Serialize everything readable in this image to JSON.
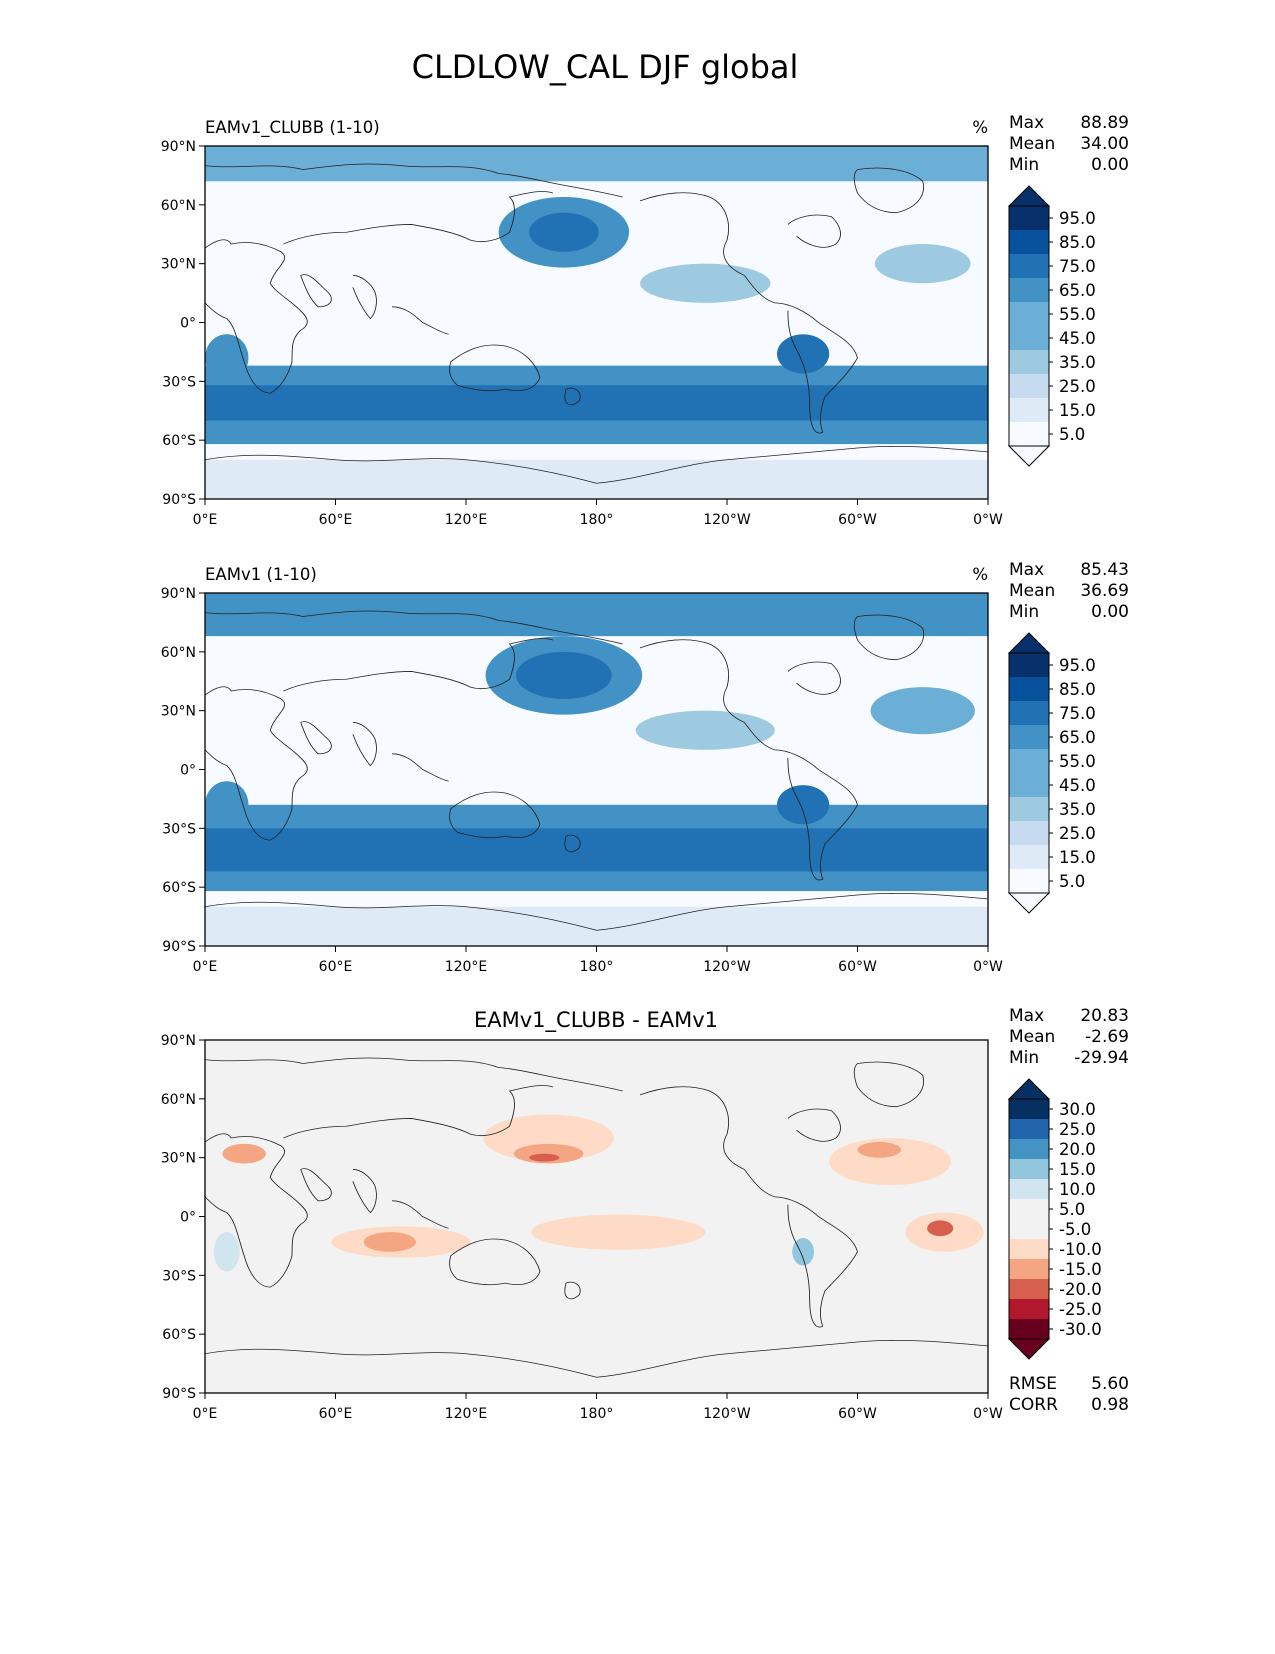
{
  "figure": {
    "title": "CLDLOW_CAL DJF global"
  },
  "colors": {
    "seq": [
      "#f7fbff",
      "#deebf7",
      "#c6dbef",
      "#9ecae1",
      "#6baed6",
      "#4292c6",
      "#2171b5",
      "#08519c",
      "#08306b"
    ],
    "div_pos": [
      "#d1e5f0",
      "#92c5de",
      "#4393c3",
      "#2166ac",
      "#053061"
    ],
    "div_neg": [
      "#fddbc7",
      "#f4a582",
      "#d6604d",
      "#b2182b",
      "#67001f"
    ],
    "div_zero": "#f2f2f2",
    "coast": "#222222"
  },
  "axes": {
    "lon_ticks": [
      "0°E",
      "60°E",
      "120°E",
      "180°",
      "120°W",
      "60°W",
      "0°W"
    ],
    "lat_ticks": [
      "90°N",
      "60°N",
      "30°N",
      "0°",
      "30°S",
      "60°S",
      "90°S"
    ]
  },
  "panels": [
    {
      "title": "EAMv1_CLUBB (1-10)",
      "units": "%",
      "stats": {
        "max_label": "Max",
        "max": "88.89",
        "mean_label": "Mean",
        "mean": "34.00",
        "min_label": "Min",
        "min": "0.00"
      },
      "colorbar_ticks": [
        "95.0",
        "85.0",
        "75.0",
        "65.0",
        "55.0",
        "45.0",
        "35.0",
        "25.0",
        "15.0",
        "5.0"
      ]
    },
    {
      "title": "EAMv1 (1-10)",
      "units": "%",
      "stats": {
        "max_label": "Max",
        "max": "85.43",
        "mean_label": "Mean",
        "mean": "36.69",
        "min_label": "Min",
        "min": "0.00"
      },
      "colorbar_ticks": [
        "95.0",
        "85.0",
        "75.0",
        "65.0",
        "55.0",
        "45.0",
        "35.0",
        "25.0",
        "15.0",
        "5.0"
      ]
    },
    {
      "title": "EAMv1_CLUBB - EAMv1",
      "units": "",
      "stats": {
        "max_label": "Max",
        "max": "20.83",
        "mean_label": "Mean",
        "mean": "-2.69",
        "min_label": "Min",
        "min": "-29.94"
      },
      "colorbar_ticks": [
        "30.0",
        "25.0",
        "20.0",
        "15.0",
        "10.0",
        "5.0",
        "-5.0",
        "-10.0",
        "-15.0",
        "-20.0",
        "-25.0",
        "-30.0"
      ],
      "metrics": {
        "rmse_label": "RMSE",
        "rmse": "5.60",
        "corr_label": "CORR",
        "corr": "0.98"
      }
    }
  ]
}
